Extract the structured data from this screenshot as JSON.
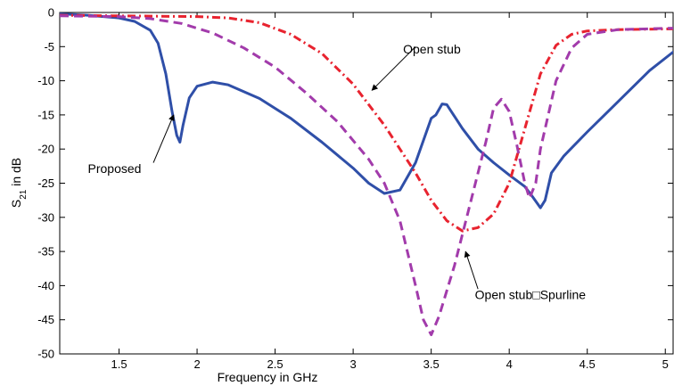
{
  "chart_data": {
    "type": "line",
    "title": "",
    "xlabel": "Frequency in GHz",
    "ylabel_main": "S",
    "ylabel_sub": "21",
    "ylabel_rest": " in dB",
    "xlim": [
      1.12,
      5.05
    ],
    "ylim": [
      -50,
      0
    ],
    "x_ticks": [
      1.5,
      2,
      2.5,
      3,
      3.5,
      4,
      4.5,
      5
    ],
    "x_tick_labels": [
      "1.5",
      "2",
      "2.5",
      "3",
      "3.5",
      "4",
      "4.5",
      "5"
    ],
    "y_ticks": [
      0,
      -5,
      -10,
      -15,
      -20,
      -25,
      -30,
      -35,
      -40,
      -45,
      -50
    ],
    "y_tick_labels": [
      "0",
      "-5",
      "-10",
      "-15",
      "-20",
      "-25",
      "-30",
      "-35",
      "-40",
      "-45",
      "-50"
    ],
    "grid": false,
    "series": [
      {
        "name": "Proposed",
        "color": "#2f4fa8",
        "style": "solid",
        "points": [
          [
            1.12,
            -0.2
          ],
          [
            1.3,
            -0.4
          ],
          [
            1.5,
            -0.8
          ],
          [
            1.6,
            -1.3
          ],
          [
            1.7,
            -2.6
          ],
          [
            1.75,
            -4.5
          ],
          [
            1.8,
            -9.0
          ],
          [
            1.84,
            -14.5
          ],
          [
            1.87,
            -18.0
          ],
          [
            1.89,
            -19.0
          ],
          [
            1.91,
            -16.5
          ],
          [
            1.95,
            -12.5
          ],
          [
            2.0,
            -10.8
          ],
          [
            2.1,
            -10.2
          ],
          [
            2.2,
            -10.6
          ],
          [
            2.4,
            -12.6
          ],
          [
            2.6,
            -15.5
          ],
          [
            2.8,
            -19.0
          ],
          [
            3.0,
            -22.8
          ],
          [
            3.1,
            -25.0
          ],
          [
            3.2,
            -26.5
          ],
          [
            3.3,
            -26.0
          ],
          [
            3.4,
            -22.0
          ],
          [
            3.5,
            -15.5
          ],
          [
            3.53,
            -15.0
          ],
          [
            3.57,
            -13.4
          ],
          [
            3.6,
            -13.5
          ],
          [
            3.7,
            -17.0
          ],
          [
            3.8,
            -20.0
          ],
          [
            3.9,
            -22.0
          ],
          [
            4.0,
            -23.8
          ],
          [
            4.1,
            -25.5
          ],
          [
            4.15,
            -27.0
          ],
          [
            4.2,
            -28.6
          ],
          [
            4.23,
            -27.5
          ],
          [
            4.27,
            -23.5
          ],
          [
            4.35,
            -21.0
          ],
          [
            4.5,
            -17.5
          ],
          [
            4.7,
            -13.0
          ],
          [
            4.9,
            -8.5
          ],
          [
            5.05,
            -5.8
          ]
        ]
      },
      {
        "name": "Open stub",
        "color": "#e8232f",
        "style": "dash-dot",
        "points": [
          [
            1.12,
            -0.4
          ],
          [
            1.5,
            -0.5
          ],
          [
            2.0,
            -0.6
          ],
          [
            2.2,
            -0.8
          ],
          [
            2.4,
            -1.5
          ],
          [
            2.6,
            -3.2
          ],
          [
            2.8,
            -6.0
          ],
          [
            3.0,
            -10.5
          ],
          [
            3.2,
            -16.5
          ],
          [
            3.4,
            -23.5
          ],
          [
            3.5,
            -27.5
          ],
          [
            3.6,
            -30.5
          ],
          [
            3.7,
            -32.0
          ],
          [
            3.8,
            -31.5
          ],
          [
            3.9,
            -29.5
          ],
          [
            4.0,
            -25.0
          ],
          [
            4.1,
            -17.0
          ],
          [
            4.2,
            -9.0
          ],
          [
            4.3,
            -4.8
          ],
          [
            4.4,
            -3.2
          ],
          [
            4.5,
            -2.7
          ],
          [
            4.7,
            -2.5
          ],
          [
            5.05,
            -2.4
          ]
        ]
      },
      {
        "name": "Open stub□Spurline",
        "color": "#a23bab",
        "style": "dashed",
        "points": [
          [
            1.12,
            -0.5
          ],
          [
            1.5,
            -0.6
          ],
          [
            1.7,
            -0.9
          ],
          [
            1.9,
            -1.6
          ],
          [
            2.1,
            -3.0
          ],
          [
            2.3,
            -5.2
          ],
          [
            2.5,
            -8.0
          ],
          [
            2.7,
            -11.8
          ],
          [
            2.9,
            -16.0
          ],
          [
            3.1,
            -21.5
          ],
          [
            3.2,
            -25.0
          ],
          [
            3.3,
            -30.5
          ],
          [
            3.4,
            -40.0
          ],
          [
            3.45,
            -45.0
          ],
          [
            3.5,
            -47.2
          ],
          [
            3.55,
            -44.5
          ],
          [
            3.65,
            -37.0
          ],
          [
            3.75,
            -28.0
          ],
          [
            3.85,
            -19.0
          ],
          [
            3.9,
            -14.0
          ],
          [
            3.95,
            -12.7
          ],
          [
            4.0,
            -14.5
          ],
          [
            4.05,
            -19.5
          ],
          [
            4.1,
            -25.0
          ],
          [
            4.13,
            -27.2
          ],
          [
            4.17,
            -25.0
          ],
          [
            4.2,
            -20.0
          ],
          [
            4.3,
            -10.0
          ],
          [
            4.4,
            -5.2
          ],
          [
            4.5,
            -3.2
          ],
          [
            4.7,
            -2.5
          ],
          [
            5.05,
            -2.3
          ]
        ]
      }
    ],
    "annotations": [
      {
        "text": "Open stub",
        "label_at": [
          3.32,
          -6.0
        ],
        "arrow_from": [
          3.4,
          -5.0
        ],
        "arrow_to": [
          3.12,
          -11.4
        ]
      },
      {
        "text": "Proposed",
        "label_at": [
          1.3,
          -23.5
        ],
        "arrow_from": [
          1.72,
          -22.0
        ],
        "arrow_to": [
          1.85,
          -15.0
        ]
      },
      {
        "text": "Open stub□Spurline",
        "label_at": [
          3.78,
          -42.0
        ],
        "arrow_from": [
          3.8,
          -40.5
        ],
        "arrow_to": [
          3.72,
          -35.0
        ]
      }
    ]
  }
}
